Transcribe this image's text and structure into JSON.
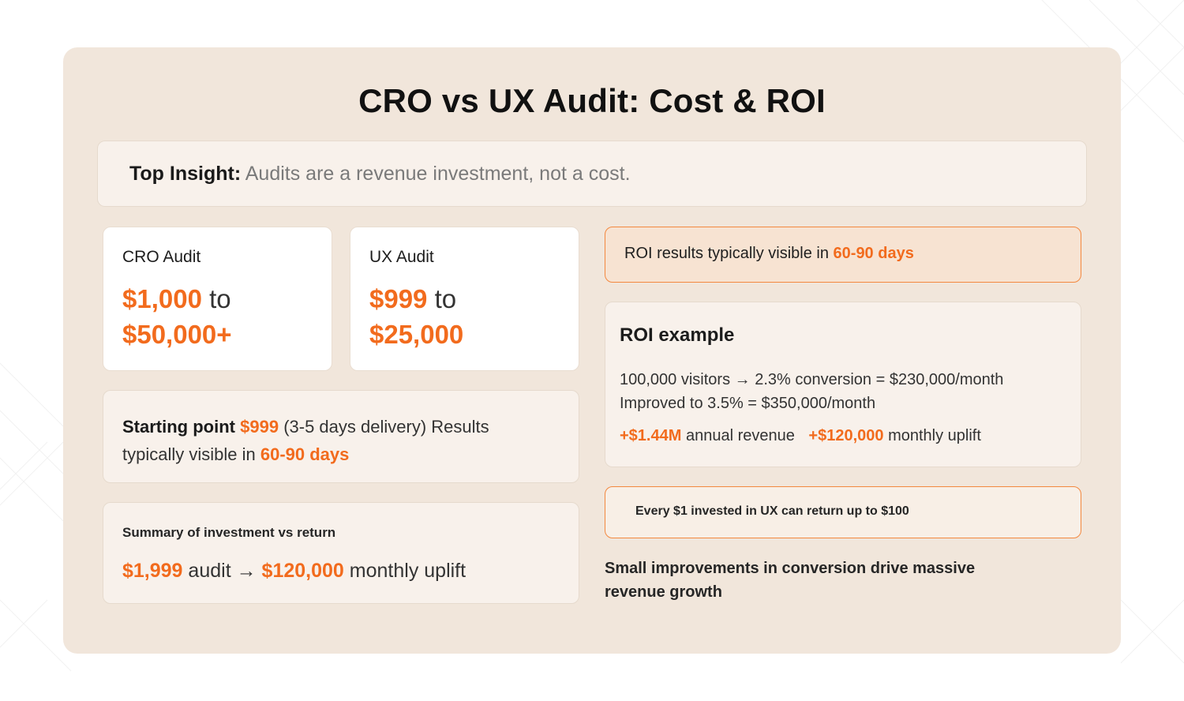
{
  "title": "CRO vs UX Audit: Cost & ROI",
  "insight": {
    "label": "Top Insight:",
    "text": "Audits are a revenue investment, not a cost."
  },
  "cro_audit": {
    "label": "CRO Audit",
    "min": "$1,000",
    "to": "to",
    "max": "$50,000+"
  },
  "ux_audit": {
    "label": "UX Audit",
    "min": "$999",
    "to": "to",
    "max": "$25,000"
  },
  "starting": {
    "label": "Starting point",
    "price": "$999",
    "delivery": "(3-5 days delivery) Results typically visible in",
    "days": "60-90 days"
  },
  "summary": {
    "heading": "Summary of investment vs return",
    "audit_value": "$1,999",
    "audit_text": "audit →",
    "uplift_value": "$120,000",
    "uplift_text": "monthly uplift"
  },
  "roi_visible": {
    "text": "ROI results typically visible in",
    "days": "60-90 days"
  },
  "roi_example": {
    "heading": "ROI example",
    "line1": "100,000 visitors → 2.3% conversion = $230,000/month",
    "line2": "Improved to 3.5% = $350,000/month",
    "annual_value": "+$1.44M",
    "annual_text": "annual revenue",
    "monthly_value": "+$120,000",
    "monthly_text": "monthly uplift"
  },
  "return_note": "Every $1 invested in UX can return up to $100",
  "footer": "Small improvements in conversion drive massive revenue growth",
  "colors": {
    "accent": "#f26b1d",
    "panel": "#f1e6db",
    "card": "#f8f1eb"
  }
}
